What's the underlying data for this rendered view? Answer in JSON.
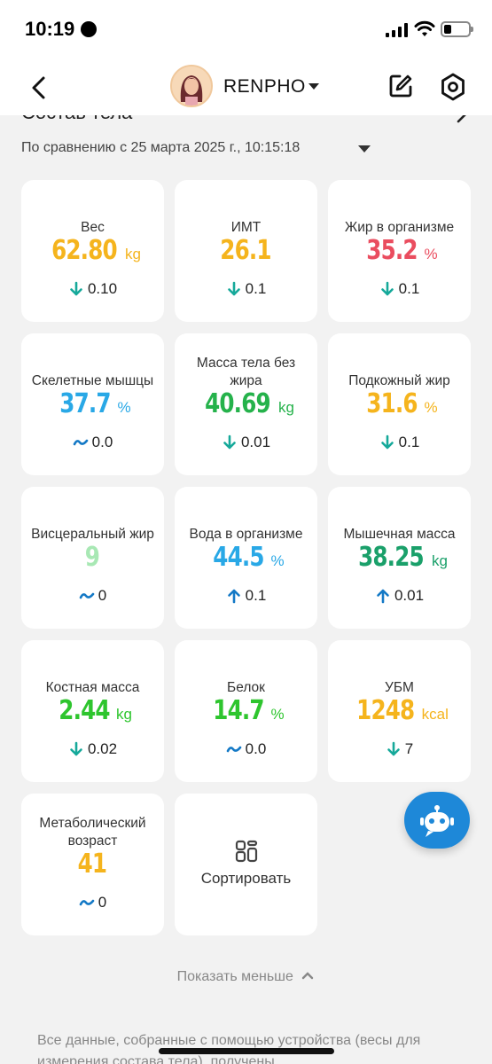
{
  "status": {
    "time": "10:19"
  },
  "header": {
    "brand": "RENPHO"
  },
  "section": {
    "title": "Состав тела",
    "compare_text": "По сравнению с 25 марта 2025 г., 10:15:18"
  },
  "metrics": [
    {
      "label": "Вес",
      "value": "62.80",
      "unit": "kg",
      "color": "#f5b41d",
      "delta": "0.10",
      "direction": "down"
    },
    {
      "label": "ИМТ",
      "value": "26.1",
      "unit": "",
      "color": "#f5b41d",
      "delta": "0.1",
      "direction": "down"
    },
    {
      "label": "Жир в организме",
      "value": "35.2",
      "unit": "%",
      "color": "#ea4d5f",
      "delta": "0.1",
      "direction": "down"
    },
    {
      "label": "Скелетные мышцы",
      "value": "37.7",
      "unit": "%",
      "color": "#29a8e6",
      "delta": "0.0",
      "direction": "flat"
    },
    {
      "label": "Масса тела без жира",
      "value": "40.69",
      "unit": "kg",
      "color": "#25b24b",
      "delta": "0.01",
      "direction": "down"
    },
    {
      "label": "Подкожный жир",
      "value": "31.6",
      "unit": "%",
      "color": "#f5b41d",
      "delta": "0.1",
      "direction": "down"
    },
    {
      "label": "Висцеральный жир",
      "value": "9",
      "unit": "",
      "color": "#a8e8b4",
      "delta": "0",
      "direction": "flat"
    },
    {
      "label": "Вода в организме",
      "value": "44.5",
      "unit": "%",
      "color": "#29a8e6",
      "delta": "0.1",
      "direction": "up"
    },
    {
      "label": "Мышечная масса",
      "value": "38.25",
      "unit": "kg",
      "color": "#1aa06a",
      "delta": "0.01",
      "direction": "up"
    },
    {
      "label": "Костная масса",
      "value": "2.44",
      "unit": "kg",
      "color": "#2ec52e",
      "delta": "0.02",
      "direction": "down"
    },
    {
      "label": "Белок",
      "value": "14.7",
      "unit": "%",
      "color": "#2ec52e",
      "delta": "0.0",
      "direction": "flat"
    },
    {
      "label": "УБМ",
      "value": "1248",
      "unit": "kcal",
      "color": "#f5b41d",
      "delta": "7",
      "direction": "down"
    },
    {
      "label": "Метаболический возраст",
      "value": "41",
      "unit": "",
      "color": "#f5b41d",
      "delta": "0",
      "direction": "flat"
    }
  ],
  "sort": {
    "label": "Сортировать"
  },
  "show_less": "Показать меньше",
  "footer": "Все данные, собранные с помощью устройства (весы для измерения состава тела), получены",
  "colors": {
    "arrow_down": "#16a99a",
    "arrow_up": "#1479c6",
    "flat": "#1479c6",
    "fab": "#1e88d8"
  },
  "icons": [
    "back-arrow-icon",
    "chevron-down-icon",
    "edit-icon",
    "gear-icon",
    "chevron-right-icon",
    "arrow-down-icon",
    "arrow-up-icon",
    "wave-icon",
    "sort-icon",
    "chat-bot-icon",
    "chevron-up-icon"
  ]
}
